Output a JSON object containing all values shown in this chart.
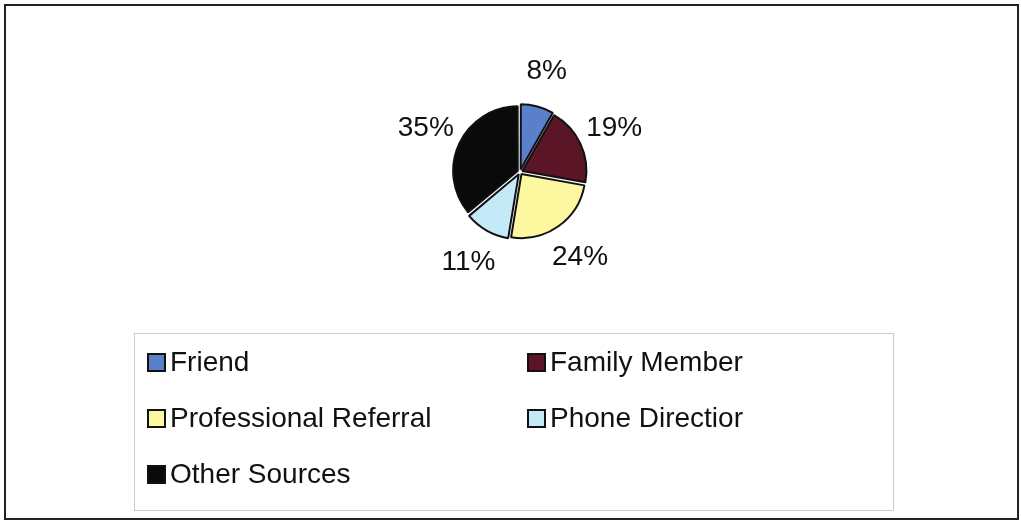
{
  "chart_data": {
    "type": "pie",
    "categories": [
      "Friend",
      "Family Member",
      "Professional Referral",
      "Phone Directior",
      "Other Sources"
    ],
    "values": [
      8,
      19,
      24,
      11,
      35
    ],
    "colors": [
      "#5a7fcb",
      "#5a1626",
      "#fdf7a0",
      "#c4e9f7",
      "#0a0a0a"
    ],
    "value_labels": [
      "8%",
      "19%",
      "24%",
      "11%",
      "35%"
    ],
    "legend": "bottom"
  }
}
